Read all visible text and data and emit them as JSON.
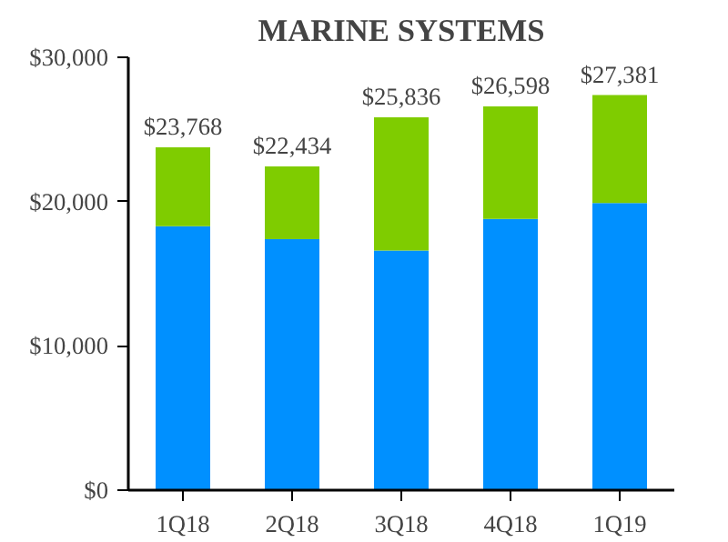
{
  "chart_data": {
    "type": "bar",
    "title": "MARINE SYSTEMS",
    "stacked": true,
    "categories": [
      "1Q18",
      "2Q18",
      "3Q18",
      "4Q18",
      "1Q19"
    ],
    "series": [
      {
        "color": "#0090ff",
        "values": [
          18300,
          17400,
          16600,
          18800,
          19900
        ]
      },
      {
        "color": "#7fcc00",
        "values": [
          5468,
          5034,
          9236,
          7798,
          7481
        ]
      }
    ],
    "totals": [
      "$23,768",
      "$22,434",
      "$25,836",
      "$26,598",
      "$27,381"
    ],
    "ylim": [
      0,
      30000
    ],
    "yticks": [
      {
        "value": 0,
        "label": "$0"
      },
      {
        "value": 10000,
        "label": "$10,000"
      },
      {
        "value": 20000,
        "label": "$20,000"
      },
      {
        "value": 30000,
        "label": "$30,000"
      }
    ],
    "grid": false
  }
}
